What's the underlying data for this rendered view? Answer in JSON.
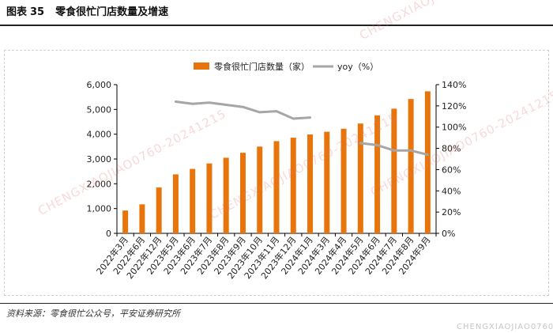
{
  "figure": {
    "label": "图表",
    "number": "35",
    "title": "零食很忙门店数量及增速",
    "source": "资料来源：零食很忙公众号，平安证券研究所"
  },
  "watermarks": [
    "CHENGXIAOJIAO0760-20241215",
    "CHENGXIAOJIAO0760-20241215",
    "CHENGXIAOJIAO0760-20241215",
    "CHENGXIAOJIAO0760-20241215",
    "CHENGXIAOJIAO0760"
  ],
  "chart_data": {
    "type": "bar",
    "categories": [
      "2022年3月",
      "2022年6月",
      "2022年12月",
      "2023年5月",
      "2023年6月",
      "2023年7月",
      "2023年8月",
      "2023年9月",
      "2023年10月",
      "2023年11月",
      "2023年12月",
      "2024年1月",
      "2024年3月",
      "2024年4月",
      "2024年5月",
      "2024年6月",
      "2024年7月",
      "2024年8月",
      "2024年9月"
    ],
    "series": [
      {
        "name": "零食很忙门店数量（家）",
        "kind": "bar",
        "axis": "left",
        "color": "#E8740C",
        "values": [
          920,
          1170,
          1850,
          2380,
          2600,
          2820,
          3050,
          3250,
          3500,
          3720,
          3860,
          3990,
          4100,
          4220,
          4430,
          4760,
          5030,
          5420,
          5730
        ]
      },
      {
        "name": "yoy（%）",
        "kind": "line",
        "axis": "right",
        "color": "#A6A6A6",
        "values": [
          null,
          null,
          null,
          124,
          122,
          123,
          121,
          119,
          114,
          115,
          108,
          109,
          null,
          null,
          85,
          83,
          78,
          78,
          74
        ]
      }
    ],
    "y_left": {
      "min": 0,
      "max": 6000,
      "ticks": [
        "0",
        "1,000",
        "2,000",
        "3,000",
        "4,000",
        "5,000",
        "6,000"
      ]
    },
    "y_right": {
      "min": 0,
      "max": 140,
      "ticks": [
        "0%",
        "20%",
        "40%",
        "60%",
        "80%",
        "100%",
        "120%",
        "140%"
      ]
    },
    "legend_position": "top-center",
    "grid": false
  }
}
